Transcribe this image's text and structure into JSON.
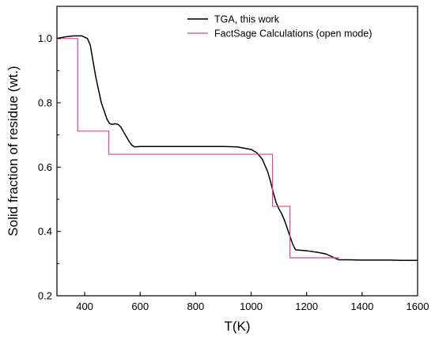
{
  "chart_data": {
    "type": "line",
    "xlabel": "T(K)",
    "ylabel": "Solid fraction of residue (wt.)",
    "xlim": [
      300,
      1600
    ],
    "ylim": [
      0.2,
      1.1
    ],
    "xticks": [
      400,
      600,
      800,
      1000,
      1200,
      1400,
      1600
    ],
    "yticks": [
      0.2,
      0.4,
      0.6,
      0.8,
      1.0
    ],
    "xtick_labels": [
      "400",
      "600",
      "800",
      "1000",
      "1200",
      "1400",
      "1600"
    ],
    "ytick_labels": [
      "0.2",
      "0.4",
      "0.6",
      "0.8",
      "1.0"
    ],
    "legend_position": "top-right",
    "series": [
      {
        "name": "TGA, this work",
        "color": "#000000",
        "x": [
          300,
          330,
          360,
          390,
          410,
          420,
          430,
          440,
          450,
          460,
          470,
          480,
          490,
          500,
          510,
          520,
          530,
          540,
          550,
          560,
          570,
          580,
          600,
          700,
          800,
          900,
          950,
          1000,
          1020,
          1040,
          1060,
          1070,
          1080,
          1090,
          1100,
          1110,
          1120,
          1130,
          1140,
          1150,
          1160,
          1200,
          1240,
          1270,
          1300,
          1315,
          1350,
          1400,
          1500,
          1550,
          1600
        ],
        "y": [
          1.0,
          1.005,
          1.008,
          1.008,
          1.0,
          0.98,
          0.93,
          0.88,
          0.84,
          0.8,
          0.775,
          0.75,
          0.735,
          0.733,
          0.735,
          0.733,
          0.725,
          0.71,
          0.695,
          0.68,
          0.668,
          0.663,
          0.664,
          0.664,
          0.664,
          0.664,
          0.663,
          0.655,
          0.645,
          0.625,
          0.585,
          0.555,
          0.52,
          0.49,
          0.47,
          0.455,
          0.435,
          0.41,
          0.385,
          0.36,
          0.343,
          0.34,
          0.335,
          0.33,
          0.318,
          0.312,
          0.312,
          0.311,
          0.311,
          0.31,
          0.31
        ]
      },
      {
        "name": "FactSage Calculations (open mode)",
        "color": "#e0449a",
        "x": [
          300,
          375,
          375,
          487,
          487,
          1077,
          1077,
          1140,
          1140,
          1315,
          1315
        ],
        "y": [
          1.0,
          1.0,
          0.712,
          0.712,
          0.64,
          0.64,
          0.478,
          0.478,
          0.318,
          0.318,
          0.312
        ]
      }
    ]
  }
}
